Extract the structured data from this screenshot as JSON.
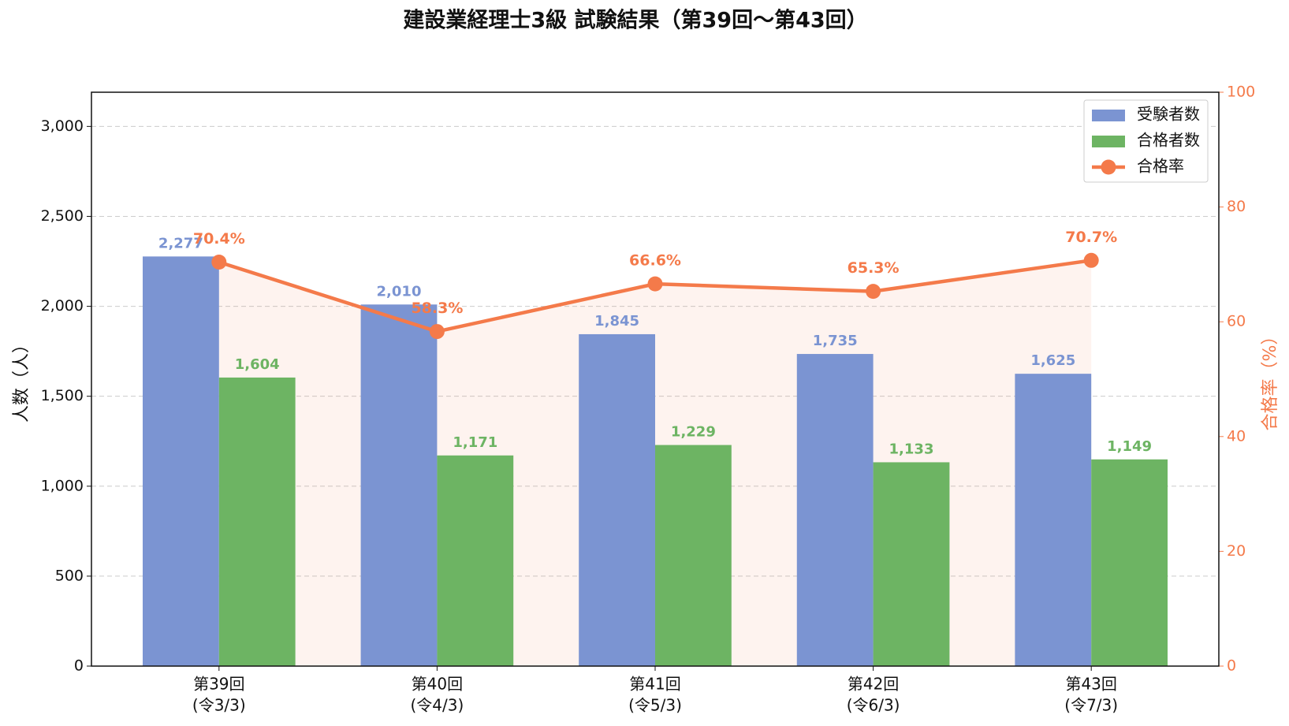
{
  "chart_data": {
    "type": "bar-line",
    "title": "建設業経理士3級 試験結果（第39回〜第43回）",
    "y_label": "人数（人）",
    "y2_label": "合格率（%）",
    "categories": [
      [
        "第39回",
        "(令3/3)"
      ],
      [
        "第40回",
        "(令4/3)"
      ],
      [
        "第41回",
        "(令5/3)"
      ],
      [
        "第42回",
        "(令6/3)"
      ],
      [
        "第43回",
        "(令7/3)"
      ]
    ],
    "series": [
      {
        "name": "受験者数",
        "type": "bar",
        "color": "#7b94d2",
        "values": [
          2277,
          2010,
          1845,
          1735,
          1625
        ],
        "value_labels": [
          "2,277",
          "2,010",
          "1,845",
          "1,735",
          "1,625"
        ]
      },
      {
        "name": "合格者数",
        "type": "bar",
        "color": "#6db463",
        "values": [
          1604,
          1171,
          1229,
          1133,
          1149
        ],
        "value_labels": [
          "1,604",
          "1,171",
          "1,229",
          "1,133",
          "1,149"
        ]
      },
      {
        "name": "合格率",
        "type": "line",
        "axis": "y2",
        "color": "#f47a4a",
        "values": [
          70.4,
          58.3,
          66.6,
          65.3,
          70.7
        ],
        "value_labels": [
          "70.4%",
          "58.3%",
          "66.6%",
          "65.3%",
          "70.7%"
        ]
      }
    ],
    "ylim": [
      0,
      3190
    ],
    "yticks": [
      0,
      500,
      {
        "value": 1000,
        "label": "1,000"
      },
      {
        "value": 1500,
        "label": "1,500"
      },
      {
        "value": 2000,
        "label": "2,000"
      },
      {
        "value": 2500,
        "label": "2,500"
      },
      {
        "value": 3000,
        "label": "3,000"
      }
    ],
    "y2lim": [
      0,
      100
    ],
    "y2ticks": [
      0,
      20,
      40,
      60,
      80,
      100
    ],
    "grid": true,
    "legend": "upper right"
  }
}
